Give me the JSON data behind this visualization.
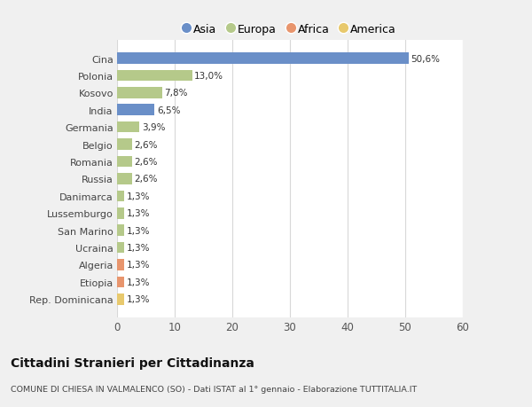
{
  "categories": [
    "Rep. Dominicana",
    "Etiopia",
    "Algeria",
    "Ucraina",
    "San Marino",
    "Lussemburgo",
    "Danimarca",
    "Russia",
    "Romania",
    "Belgio",
    "Germania",
    "India",
    "Kosovo",
    "Polonia",
    "Cina"
  ],
  "values": [
    1.3,
    1.3,
    1.3,
    1.3,
    1.3,
    1.3,
    1.3,
    2.6,
    2.6,
    2.6,
    3.9,
    6.5,
    7.8,
    13.0,
    50.6
  ],
  "labels": [
    "1,3%",
    "1,3%",
    "1,3%",
    "1,3%",
    "1,3%",
    "1,3%",
    "1,3%",
    "2,6%",
    "2,6%",
    "2,6%",
    "3,9%",
    "6,5%",
    "7,8%",
    "13,0%",
    "50,6%"
  ],
  "continents": [
    "America",
    "Africa",
    "Africa",
    "Europa",
    "Europa",
    "Europa",
    "Europa",
    "Europa",
    "Europa",
    "Europa",
    "Europa",
    "Asia",
    "Europa",
    "Europa",
    "Asia"
  ],
  "colors": {
    "Asia": "#6a8fc8",
    "Europa": "#b5c98a",
    "Africa": "#e8956d",
    "America": "#e8c96d"
  },
  "legend_order": [
    "Asia",
    "Europa",
    "Africa",
    "America"
  ],
  "title": "Cittadini Stranieri per Cittadinanza",
  "subtitle": "COMUNE DI CHIESA IN VALMALENCO (SO) - Dati ISTAT al 1° gennaio - Elaborazione TUTTITALIA.IT",
  "xlim": [
    0,
    60
  ],
  "xticks": [
    0,
    10,
    20,
    30,
    40,
    50,
    60
  ],
  "bg_color": "#f0f0f0",
  "plot_bg_color": "#ffffff",
  "grid_color": "#d8d8d8"
}
